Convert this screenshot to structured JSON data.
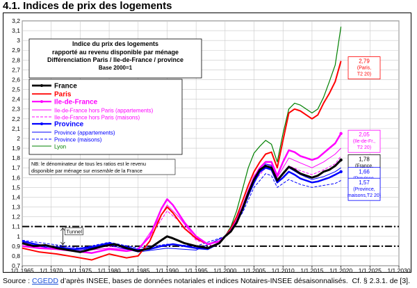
{
  "page": {
    "title": "4.1. Indices de prix des logements",
    "source_prefix": "Source : ",
    "source_link": "CGEDD",
    "source_rest": " d’après INSEE, bases de données notariales et indices Notaires-INSEE désaisonnalisés.",
    "source_ref": "Cf. § 2.3.1. de [3]."
  },
  "chart_data": {
    "type": "line",
    "title": "Indice du prix des logements",
    "subtitle_lines": [
      "rapporté au revenu disponible par ménage",
      "Différenciation Paris / Ile-de-France / province",
      "Base 2000=1"
    ],
    "xlim": [
      1965,
      2030
    ],
    "ylim": [
      0.7,
      3.2
    ],
    "x_ticks": [
      1965,
      1970,
      1975,
      1980,
      1985,
      1990,
      1995,
      2000,
      2005,
      2010,
      2015,
      2020,
      2025,
      2030
    ],
    "x_tick_labels": [
      "1/1 1965",
      "1/1 1970",
      "1/1 1975",
      "1/1 1980",
      "1/1 1985",
      "1/1 1990",
      "1/1 1995",
      "1/1 2000",
      "1/1 2005",
      "1/1 2010",
      "1/1 2015",
      "1/1 2020",
      "1/1 2025",
      "1/1 2030"
    ],
    "y_ticks": [
      0.7,
      0.8,
      0.9,
      1,
      1.1,
      1.2,
      1.3,
      1.4,
      1.5,
      1.6,
      1.7,
      1.8,
      1.9,
      2,
      2.1,
      2.2,
      2.3,
      2.4,
      2.5,
      2.6,
      2.7,
      2.8,
      2.9,
      3,
      3.1,
      3.2
    ],
    "y_tick_labels": [
      "0,7",
      "0,8",
      "0,9",
      "1",
      "1,1",
      "1,2",
      "1,3",
      "1,4",
      "1,5",
      "1,6",
      "1,7",
      "1,8",
      "1,9",
      "2",
      "2,1",
      "2,2",
      "2,3",
      "2,4",
      "2,5",
      "2,6",
      "2,7",
      "2,8",
      "2,9",
      "3",
      "3,1",
      "3,2"
    ],
    "grid": true,
    "tunnel": {
      "label": "Tunnel",
      "low": 0.9,
      "high": 1.1,
      "x_start": 1965,
      "x_end": 2030
    },
    "note": "NB: le dénominateur de tous les ratios est le revenu disponible par ménage sur ensemble de la France",
    "note_lines": [
      "NB: le dénominateur de tous les ratios est le revenu",
      "disponible par ménage sur",
      "ensemble",
      "de la France"
    ],
    "series": [
      {
        "name": "France",
        "color": "#000000",
        "width": 3,
        "dash": "",
        "marker": true,
        "points": [
          [
            1965,
            0.93
          ],
          [
            1967,
            0.9
          ],
          [
            1969,
            0.91
          ],
          [
            1971,
            0.88
          ],
          [
            1973,
            0.86
          ],
          [
            1975,
            0.84
          ],
          [
            1977,
            0.87
          ],
          [
            1979,
            0.9
          ],
          [
            1981,
            0.92
          ],
          [
            1983,
            0.88
          ],
          [
            1985,
            0.85
          ],
          [
            1987,
            0.88
          ],
          [
            1989,
            0.96
          ],
          [
            1990,
            1.0
          ],
          [
            1991,
            0.98
          ],
          [
            1993,
            0.93
          ],
          [
            1995,
            0.9
          ],
          [
            1997,
            0.88
          ],
          [
            1999,
            0.93
          ],
          [
            2000,
            1.0
          ],
          [
            2001,
            1.05
          ],
          [
            2002,
            1.14
          ],
          [
            2003,
            1.28
          ],
          [
            2004,
            1.44
          ],
          [
            2005,
            1.58
          ],
          [
            2006,
            1.68
          ],
          [
            2007,
            1.72
          ],
          [
            2008,
            1.7
          ],
          [
            2009,
            1.57
          ],
          [
            2010,
            1.64
          ],
          [
            2011,
            1.71
          ],
          [
            2012,
            1.68
          ],
          [
            2013,
            1.64
          ],
          [
            2014,
            1.62
          ],
          [
            2015,
            1.6
          ],
          [
            2016,
            1.62
          ],
          [
            2017,
            1.66
          ],
          [
            2018,
            1.68
          ],
          [
            2019,
            1.72
          ],
          [
            2020,
            1.78
          ]
        ]
      },
      {
        "name": "Paris",
        "color": "#ff0000",
        "width": 2,
        "dash": "",
        "marker": false,
        "points": [
          [
            1965,
            0.88
          ],
          [
            1968,
            0.84
          ],
          [
            1971,
            0.82
          ],
          [
            1974,
            0.79
          ],
          [
            1977,
            0.76
          ],
          [
            1980,
            0.82
          ],
          [
            1983,
            0.78
          ],
          [
            1985,
            0.8
          ],
          [
            1987,
            0.95
          ],
          [
            1989,
            1.22
          ],
          [
            1990,
            1.3
          ],
          [
            1991,
            1.24
          ],
          [
            1993,
            1.08
          ],
          [
            1995,
            0.98
          ],
          [
            1997,
            0.92
          ],
          [
            1999,
            0.95
          ],
          [
            2000,
            1.0
          ],
          [
            2001,
            1.08
          ],
          [
            2002,
            1.2
          ],
          [
            2003,
            1.36
          ],
          [
            2004,
            1.52
          ],
          [
            2005,
            1.66
          ],
          [
            2006,
            1.76
          ],
          [
            2007,
            1.84
          ],
          [
            2008,
            1.86
          ],
          [
            2009,
            1.7
          ],
          [
            2010,
            1.98
          ],
          [
            2011,
            2.26
          ],
          [
            2012,
            2.3
          ],
          [
            2013,
            2.28
          ],
          [
            2014,
            2.24
          ],
          [
            2015,
            2.2
          ],
          [
            2016,
            2.24
          ],
          [
            2017,
            2.36
          ],
          [
            2018,
            2.46
          ],
          [
            2019,
            2.58
          ],
          [
            2020,
            2.79
          ]
        ]
      },
      {
        "name": "Ile-de-France",
        "color": "#ff00ff",
        "width": 2.5,
        "dash": "",
        "marker": true,
        "points": [
          [
            1965,
            0.9
          ],
          [
            1968,
            0.88
          ],
          [
            1971,
            0.87
          ],
          [
            1974,
            0.85
          ],
          [
            1977,
            0.83
          ],
          [
            1980,
            0.87
          ],
          [
            1983,
            0.85
          ],
          [
            1985,
            0.87
          ],
          [
            1987,
            1.0
          ],
          [
            1989,
            1.28
          ],
          [
            1990,
            1.38
          ],
          [
            1991,
            1.32
          ],
          [
            1993,
            1.14
          ],
          [
            1995,
            1.0
          ],
          [
            1997,
            0.92
          ],
          [
            1999,
            0.95
          ],
          [
            2000,
            1.0
          ],
          [
            2001,
            1.06
          ],
          [
            2002,
            1.16
          ],
          [
            2003,
            1.3
          ],
          [
            2004,
            1.46
          ],
          [
            2005,
            1.6
          ],
          [
            2006,
            1.7
          ],
          [
            2007,
            1.76
          ],
          [
            2008,
            1.76
          ],
          [
            2009,
            1.62
          ],
          [
            2010,
            1.76
          ],
          [
            2011,
            1.88
          ],
          [
            2012,
            1.86
          ],
          [
            2013,
            1.82
          ],
          [
            2014,
            1.8
          ],
          [
            2015,
            1.78
          ],
          [
            2016,
            1.8
          ],
          [
            2017,
            1.85
          ],
          [
            2018,
            1.9
          ],
          [
            2019,
            1.95
          ],
          [
            2020,
            2.05
          ]
        ]
      },
      {
        "name": "Ile-de-France hors Paris (appartements)",
        "color": "#ff00ff",
        "width": 1,
        "dash": "",
        "marker": false,
        "points": [
          [
            1965,
            0.92
          ],
          [
            1970,
            0.88
          ],
          [
            1975,
            0.85
          ],
          [
            1980,
            0.88
          ],
          [
            1985,
            0.86
          ],
          [
            1988,
            1.12
          ],
          [
            1990,
            1.32
          ],
          [
            1992,
            1.2
          ],
          [
            1995,
            0.97
          ],
          [
            1998,
            0.9
          ],
          [
            2000,
            1.0
          ],
          [
            2003,
            1.3
          ],
          [
            2005,
            1.62
          ],
          [
            2007,
            1.74
          ],
          [
            2008,
            1.73
          ],
          [
            2009,
            1.6
          ],
          [
            2011,
            1.8
          ],
          [
            2013,
            1.75
          ],
          [
            2015,
            1.7
          ],
          [
            2017,
            1.76
          ],
          [
            2019,
            1.84
          ],
          [
            2020,
            1.9
          ]
        ]
      },
      {
        "name": "Ile-de-France hors Paris (maisons)",
        "color": "#ff00ff",
        "width": 1,
        "dash": "4,2",
        "marker": false,
        "points": [
          [
            1965,
            0.94
          ],
          [
            1970,
            0.9
          ],
          [
            1975,
            0.87
          ],
          [
            1980,
            0.9
          ],
          [
            1985,
            0.86
          ],
          [
            1988,
            1.08
          ],
          [
            1990,
            1.26
          ],
          [
            1992,
            1.16
          ],
          [
            1995,
            0.96
          ],
          [
            1998,
            0.9
          ],
          [
            2000,
            1.0
          ],
          [
            2003,
            1.28
          ],
          [
            2005,
            1.56
          ],
          [
            2007,
            1.7
          ],
          [
            2008,
            1.68
          ],
          [
            2009,
            1.55
          ],
          [
            2011,
            1.72
          ],
          [
            2013,
            1.67
          ],
          [
            2015,
            1.63
          ],
          [
            2017,
            1.68
          ],
          [
            2019,
            1.74
          ],
          [
            2020,
            1.82
          ]
        ]
      },
      {
        "name": "Province",
        "color": "#0000ff",
        "width": 2.5,
        "dash": "",
        "marker": true,
        "points": [
          [
            1965,
            0.95
          ],
          [
            1968,
            0.91
          ],
          [
            1971,
            0.89
          ],
          [
            1974,
            0.87
          ],
          [
            1977,
            0.89
          ],
          [
            1980,
            0.93
          ],
          [
            1983,
            0.89
          ],
          [
            1985,
            0.86
          ],
          [
            1987,
            0.87
          ],
          [
            1989,
            0.9
          ],
          [
            1991,
            0.92
          ],
          [
            1993,
            0.9
          ],
          [
            1995,
            0.88
          ],
          [
            1997,
            0.87
          ],
          [
            1999,
            0.93
          ],
          [
            2000,
            1.0
          ],
          [
            2001,
            1.05
          ],
          [
            2002,
            1.14
          ],
          [
            2003,
            1.27
          ],
          [
            2004,
            1.42
          ],
          [
            2005,
            1.55
          ],
          [
            2006,
            1.66
          ],
          [
            2007,
            1.7
          ],
          [
            2008,
            1.68
          ],
          [
            2009,
            1.55
          ],
          [
            2010,
            1.6
          ],
          [
            2011,
            1.66
          ],
          [
            2012,
            1.63
          ],
          [
            2013,
            1.59
          ],
          [
            2014,
            1.57
          ],
          [
            2015,
            1.55
          ],
          [
            2016,
            1.56
          ],
          [
            2017,
            1.58
          ],
          [
            2018,
            1.6
          ],
          [
            2019,
            1.63
          ],
          [
            2020,
            1.66
          ]
        ]
      },
      {
        "name": "Province (appartements)",
        "color": "#0000ff",
        "width": 1,
        "dash": "",
        "marker": false,
        "points": [
          [
            1965,
            0.93
          ],
          [
            1970,
            0.88
          ],
          [
            1975,
            0.86
          ],
          [
            1980,
            0.91
          ],
          [
            1985,
            0.84
          ],
          [
            1990,
            0.88
          ],
          [
            1995,
            0.86
          ],
          [
            2000,
            1.0
          ],
          [
            2003,
            1.3
          ],
          [
            2005,
            1.6
          ],
          [
            2007,
            1.74
          ],
          [
            2008,
            1.72
          ],
          [
            2009,
            1.58
          ],
          [
            2011,
            1.7
          ],
          [
            2013,
            1.63
          ],
          [
            2015,
            1.58
          ],
          [
            2017,
            1.61
          ],
          [
            2019,
            1.66
          ],
          [
            2020,
            1.7
          ]
        ]
      },
      {
        "name": "Province (maisons)",
        "color": "#0000ff",
        "width": 1,
        "dash": "4,2",
        "marker": false,
        "points": [
          [
            1965,
            0.96
          ],
          [
            1970,
            0.92
          ],
          [
            1975,
            0.88
          ],
          [
            1980,
            0.94
          ],
          [
            1985,
            0.88
          ],
          [
            1990,
            0.92
          ],
          [
            1995,
            0.9
          ],
          [
            2000,
            1.0
          ],
          [
            2003,
            1.24
          ],
          [
            2005,
            1.5
          ],
          [
            2007,
            1.64
          ],
          [
            2008,
            1.62
          ],
          [
            2009,
            1.5
          ],
          [
            2011,
            1.58
          ],
          [
            2013,
            1.53
          ],
          [
            2015,
            1.5
          ],
          [
            2017,
            1.52
          ],
          [
            2019,
            1.54
          ],
          [
            2020,
            1.57
          ]
        ]
      },
      {
        "name": "Lyon",
        "color": "#008000",
        "width": 1.2,
        "dash": "",
        "marker": false,
        "points": [
          [
            2000,
            1.0
          ],
          [
            2001,
            1.1
          ],
          [
            2002,
            1.26
          ],
          [
            2003,
            1.48
          ],
          [
            2004,
            1.7
          ],
          [
            2005,
            1.85
          ],
          [
            2006,
            1.92
          ],
          [
            2007,
            1.98
          ],
          [
            2008,
            1.94
          ],
          [
            2009,
            1.76
          ],
          [
            2010,
            2.05
          ],
          [
            2011,
            2.3
          ],
          [
            2012,
            2.36
          ],
          [
            2013,
            2.34
          ],
          [
            2014,
            2.3
          ],
          [
            2015,
            2.26
          ],
          [
            2016,
            2.3
          ],
          [
            2017,
            2.42
          ],
          [
            2018,
            2.58
          ],
          [
            2019,
            2.75
          ],
          [
            2020,
            3.14
          ]
        ]
      }
    ],
    "end_labels": [
      {
        "lines": [
          "2,79",
          "(Paris,",
          "T2 20)"
        ],
        "color": "#ff0000",
        "border": "#ff0000",
        "y": 2.72
      },
      {
        "lines": [
          "2,05",
          "(Ile-de-Fr.,",
          "T2 20)"
        ],
        "color": "#ff00ff",
        "border": "#ff00ff",
        "y": 1.97
      },
      {
        "lines": [
          "1,78",
          "(France,",
          "T2 20)"
        ],
        "color": "#000000",
        "border": "#000000",
        "y": 1.72
      },
      {
        "lines": [
          "1,66",
          "(Province,",
          "T2 20)"
        ],
        "color": "#0000ff",
        "border": "#0000ff",
        "y": 1.59
      },
      {
        "lines": [
          "1,57",
          "(Province,",
          "maisons,T2 20)"
        ],
        "color": "#0000ff",
        "border": "#0000ff",
        "y": 1.48
      }
    ]
  }
}
